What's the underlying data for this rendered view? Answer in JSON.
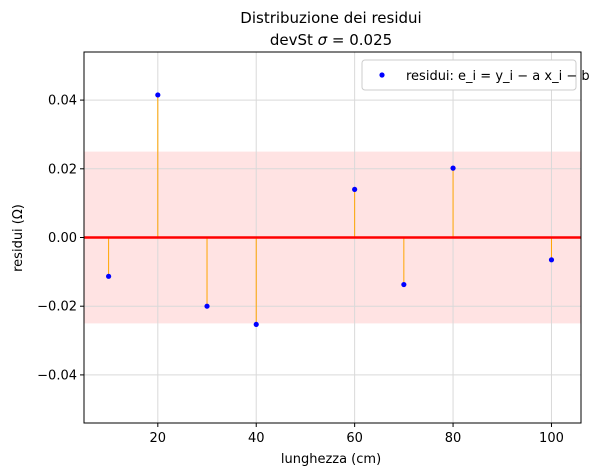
{
  "chart_data": {
    "type": "scatter",
    "title": "Distribuzione dei residui",
    "subtitle": "devSt σ = 0.025",
    "xlabel": "lunghezza (cm)",
    "ylabel": "residui (Ω)",
    "xlim": [
      5,
      106
    ],
    "ylim": [
      -0.054,
      0.054
    ],
    "xticks": [
      20,
      40,
      60,
      80,
      100
    ],
    "yticks": [
      -0.04,
      -0.02,
      0.0,
      0.02,
      0.04
    ],
    "ytick_labels": [
      "−0.04",
      "−0.02",
      "0.00",
      "0.02",
      "0.04"
    ],
    "grid": true,
    "legend_position": "top-right",
    "sigma_band": [
      -0.025,
      0.025
    ],
    "zero_line": 0,
    "series": [
      {
        "name": "residui: e_i = y_i − a x_i − b",
        "x": [
          10,
          20,
          30,
          40,
          60,
          70,
          80,
          100
        ],
        "y": [
          -0.0113,
          0.0415,
          -0.02,
          -0.0253,
          0.014,
          -0.0137,
          0.0202,
          -0.0065
        ]
      }
    ],
    "colors": {
      "points": "#0000ff",
      "stems": "#ffa500",
      "zero_line": "#ff0000",
      "band": "#ffe3e3",
      "grid": "#d9d9d9"
    }
  }
}
